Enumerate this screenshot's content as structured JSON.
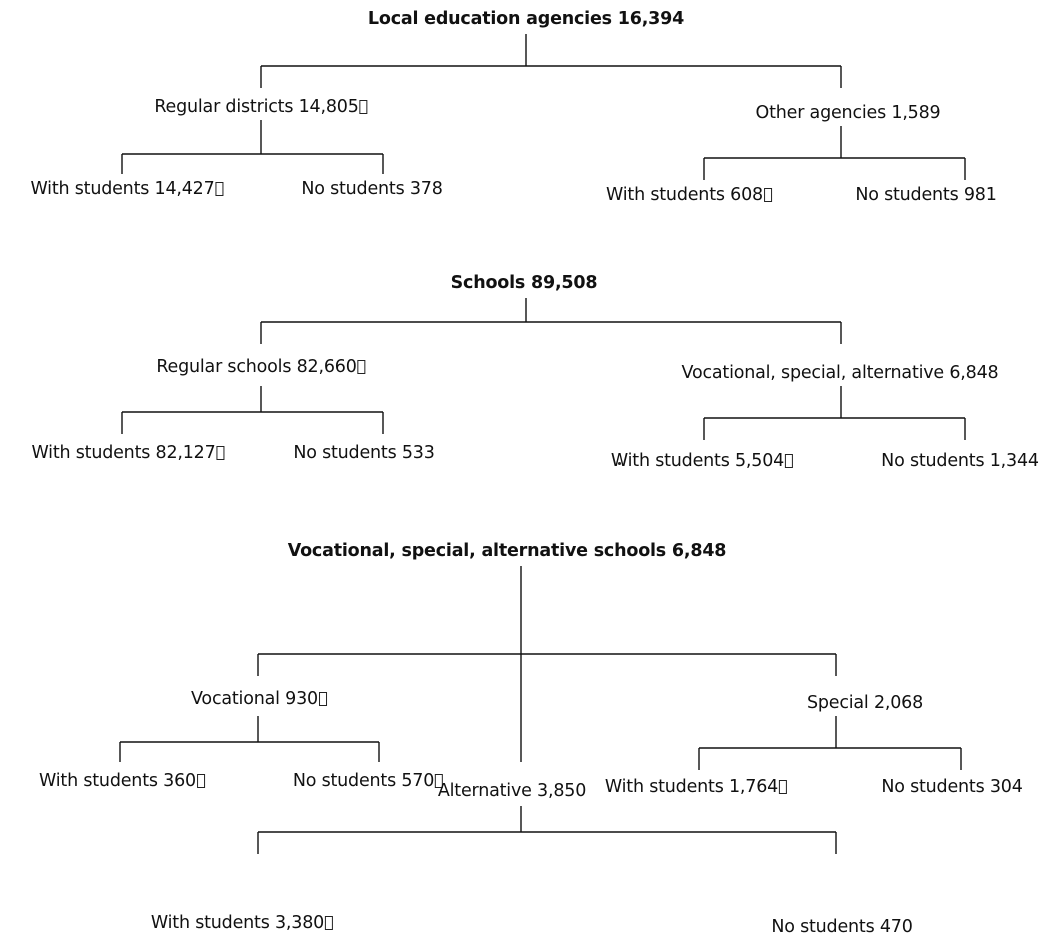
{
  "trees": [
    {
      "id": "lea",
      "root": {
        "text": "Local education agencies 16,394",
        "bold": true
      },
      "branches": [
        {
          "text": "Regular districts 14,805",
          "box": true,
          "children": [
            {
              "text": "With students 14,427",
              "box": true
            },
            {
              "text": "No students 378",
              "box": false
            }
          ]
        },
        {
          "text": "Other agencies 1,589",
          "box": false,
          "children": [
            {
              "text": "With students 608",
              "box": true
            },
            {
              "text": "No students 981",
              "box": false
            }
          ]
        }
      ]
    },
    {
      "id": "schools",
      "root": {
        "text": "Schools 89,508",
        "bold": true
      },
      "branches": [
        {
          "text": "Regular schools 82,660",
          "box": true,
          "children": [
            {
              "text": "With students 82,127",
              "box": true
            },
            {
              "text": "No students 533",
              "box": false
            }
          ]
        },
        {
          "text": "Vocational, special, alternative 6,848",
          "box": false,
          "children": [
            {
              "text": "With students 5,504",
              "box": true
            },
            {
              "text": "No students 1,344",
              "box": false
            }
          ]
        }
      ]
    },
    {
      "id": "vsa",
      "root": {
        "text": "Vocational, special, alternative schools 6,848",
        "bold": true
      },
      "branches": [
        {
          "text": "Vocational 930",
          "box": true,
          "children": [
            {
              "text": "With students 360",
              "box": true
            },
            {
              "text": "No students 570",
              "box": true
            }
          ]
        },
        {
          "text": "Special 2,068",
          "box": false,
          "children": [
            {
              "text": "With students 1,764",
              "box": true
            },
            {
              "text": "No students 304",
              "box": false
            }
          ]
        },
        {
          "text": "Alternative 3,850",
          "box": false,
          "children": [
            {
              "text": "With students 3,380",
              "box": true
            },
            {
              "text": "No students 470",
              "box": false
            }
          ]
        }
      ]
    }
  ]
}
